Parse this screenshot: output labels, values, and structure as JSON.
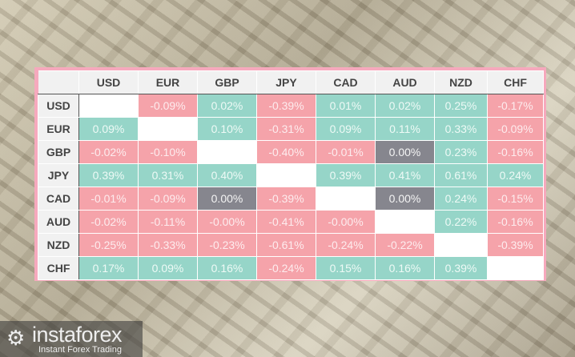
{
  "columns": [
    "USD",
    "EUR",
    "GBP",
    "JPY",
    "CAD",
    "AUD",
    "NZD",
    "CHF"
  ],
  "rows": [
    {
      "label": "USD",
      "values": [
        "",
        "-0.09%",
        "0.02%",
        "-0.39%",
        "0.01%",
        "0.02%",
        "0.25%",
        "-0.17%"
      ]
    },
    {
      "label": "EUR",
      "values": [
        "0.09%",
        "",
        "0.10%",
        "-0.31%",
        "0.09%",
        "0.11%",
        "0.33%",
        "-0.09%"
      ]
    },
    {
      "label": "GBP",
      "values": [
        "-0.02%",
        "-0.10%",
        "",
        "-0.40%",
        "-0.01%",
        "0.00%",
        "0.23%",
        "-0.16%"
      ]
    },
    {
      "label": "JPY",
      "values": [
        "0.39%",
        "0.31%",
        "0.40%",
        "",
        "0.39%",
        "0.41%",
        "0.61%",
        "0.24%"
      ]
    },
    {
      "label": "CAD",
      "values": [
        "-0.01%",
        "-0.09%",
        "0.00%",
        "-0.39%",
        "",
        "0.00%",
        "0.24%",
        "-0.15%"
      ]
    },
    {
      "label": "AUD",
      "values": [
        "-0.02%",
        "-0.11%",
        "-0.00%",
        "-0.41%",
        "-0.00%",
        "",
        "0.22%",
        "-0.16%"
      ]
    },
    {
      "label": "NZD",
      "values": [
        "-0.25%",
        "-0.33%",
        "-0.23%",
        "-0.61%",
        "-0.24%",
        "-0.22%",
        "",
        "-0.39%"
      ]
    },
    {
      "label": "CHF",
      "values": [
        "0.17%",
        "0.09%",
        "0.16%",
        "-0.24%",
        "0.15%",
        "0.16%",
        "0.39%",
        ""
      ]
    }
  ],
  "colors": {
    "positive": "#96d5c8",
    "negative": "#f5a3aa",
    "zero": "#86868e",
    "frame": "#f6a9bd"
  },
  "logo": {
    "name": "instaforex",
    "tagline": "Instant Forex Trading",
    "icon": "instaforex-logo-icon"
  }
}
